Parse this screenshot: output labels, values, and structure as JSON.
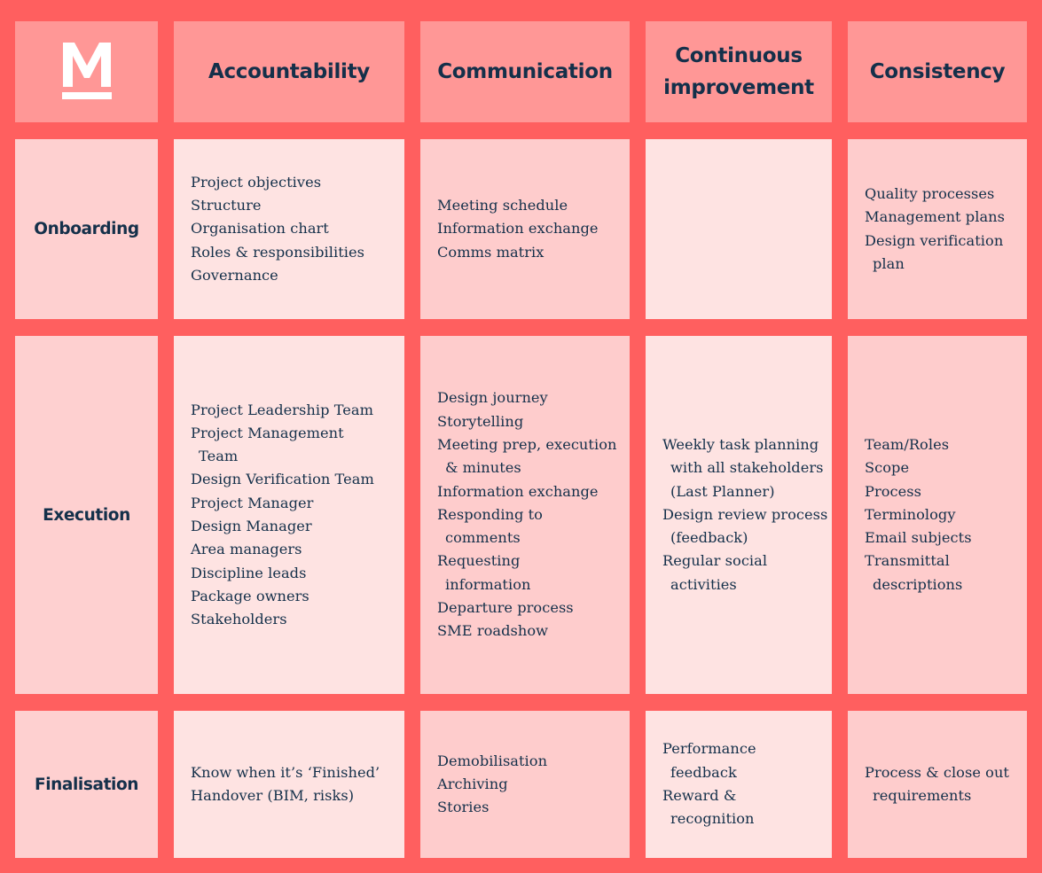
{
  "logo": {
    "letter": "M"
  },
  "columns": [
    "Accountability",
    "Communication",
    "Continuous improvement",
    "Consistency"
  ],
  "rows": [
    {
      "label": "Onboarding",
      "cells": [
        [
          "Project objectives",
          "Structure",
          "Organisation chart",
          "Roles & responsibilities",
          "Governance"
        ],
        [
          "Meeting schedule",
          "Information exchange",
          "Comms matrix"
        ],
        [],
        [
          "Quality processes",
          "Management plans",
          "Design verification plan"
        ]
      ]
    },
    {
      "label": "Execution",
      "cells": [
        [
          "Project Leadership Team",
          "Project Management Team",
          "Design Verification Team",
          "Project Manager",
          "Design Manager",
          "Area managers",
          "Discipline leads",
          "Package owners",
          "Stakeholders"
        ],
        [
          "Design journey",
          "Storytelling",
          "Meeting prep, execution & minutes",
          "Information exchange",
          "Responding to comments",
          "Requesting information",
          "Departure process",
          "SME roadshow"
        ],
        [
          "Weekly task planning with all stakeholders (Last Planner)",
          "Design review process (feedback)",
          "Regular social activities"
        ],
        [
          "Team/Roles",
          "Scope",
          "Process",
          "Terminology",
          "Email subjects",
          "Transmittal descriptions"
        ]
      ]
    },
    {
      "label": "Finalisation",
      "cells": [
        [
          "Know when it’s ‘Finished’",
          "Handover (BIM, risks)"
        ],
        [
          "Demobilisation",
          "Archiving",
          "Stories"
        ],
        [
          "Performance feedback",
          "Reward & recognition"
        ],
        [
          "Process & close out requirements"
        ]
      ]
    }
  ]
}
